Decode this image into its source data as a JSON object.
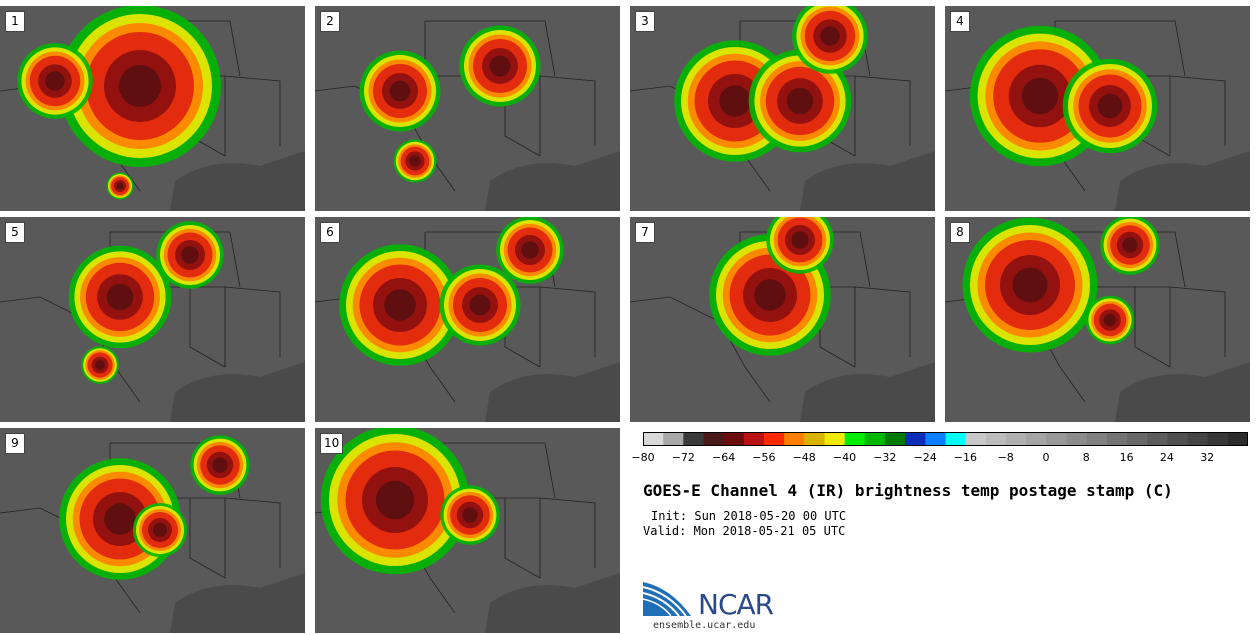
{
  "panels": [
    {
      "label": "1"
    },
    {
      "label": "2"
    },
    {
      "label": "3"
    },
    {
      "label": "4"
    },
    {
      "label": "5"
    },
    {
      "label": "6"
    },
    {
      "label": "7"
    },
    {
      "label": "8"
    },
    {
      "label": "9"
    },
    {
      "label": "10"
    }
  ],
  "colorbar": {
    "colors": [
      "#d9d9d9",
      "#a8a8a8",
      "#3a3a3a",
      "#4a1a1a",
      "#6b0d0d",
      "#b81212",
      "#ff2a00",
      "#ff7f00",
      "#d8b400",
      "#f2ea00",
      "#00ee00",
      "#00b800",
      "#007a00",
      "#0a2eb8",
      "#0a7fff",
      "#00ffff",
      "#c8c8c8",
      "#bcbcbc",
      "#b0b0b0",
      "#a4a4a4",
      "#989898",
      "#8c8c8c",
      "#808080",
      "#747474",
      "#686868",
      "#5c5c5c",
      "#505050",
      "#444444",
      "#383838",
      "#2c2c2c"
    ],
    "ticks": [
      "−80",
      "−72",
      "−64",
      "−56",
      "−48",
      "−40",
      "−32",
      "−24",
      "−16",
      "−8",
      "0",
      "8",
      "16",
      "24",
      "32"
    ]
  },
  "title": "GOES-E Channel 4 (IR) brightness temp postage stamp (C)",
  "init_line": "Init: Sun 2018-05-20 00 UTC",
  "valid_line": "Valid: Mon 2018-05-21 05 UTC",
  "logo_text": "NCAR",
  "url": "ensemble.ucar.edu"
}
